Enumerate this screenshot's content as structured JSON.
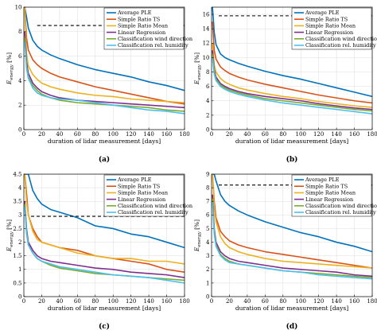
{
  "colors": {
    "average_ple": "#0072BD",
    "simple_ratio_ts": "#D95319",
    "simple_ratio_mean": "#EDB120",
    "linear_regression": "#7E2F8E",
    "classification_wind_direction": "#77AC30",
    "classification_rel_humidity": "#4DBEEE",
    "reference": "#000000"
  },
  "legend_labels": [
    "Average PLE",
    "Simple Ratio TS",
    "Simple Ratio Mean",
    "Linear Regression",
    "Classification wind direction",
    "Classification rel. humidity"
  ],
  "chart_data": [
    {
      "type": "line",
      "panel_label": "(a)",
      "xlabel": "duration of lidar measurement [days]",
      "ylabel": "E_energy [%]",
      "xlim": [
        0,
        180
      ],
      "ylim": [
        0,
        10
      ],
      "xticks": [
        0,
        20,
        40,
        60,
        80,
        100,
        120,
        140,
        160,
        180
      ],
      "yticks": [
        0,
        2,
        4,
        6,
        8,
        10
      ],
      "grid": true,
      "legend_position": "top-right",
      "x": [
        1,
        3,
        5,
        10,
        15,
        20,
        30,
        40,
        60,
        80,
        100,
        120,
        140,
        160,
        180
      ],
      "series": [
        {
          "name": "Average PLE",
          "values": [
            10,
            9.2,
            8.3,
            7.3,
            6.8,
            6.5,
            6.1,
            5.8,
            5.3,
            4.9,
            4.6,
            4.3,
            3.9,
            3.6,
            3.2
          ]
        },
        {
          "name": "Simple Ratio TS",
          "values": [
            10,
            7.5,
            6.5,
            5.7,
            5.3,
            5.0,
            4.6,
            4.3,
            3.9,
            3.5,
            3.2,
            2.9,
            2.6,
            2.3,
            2.1
          ]
        },
        {
          "name": "Simple Ratio Mean",
          "values": [
            10,
            6.2,
            5.2,
            4.5,
            4.1,
            3.8,
            3.5,
            3.3,
            3.0,
            2.8,
            2.7,
            2.5,
            2.4,
            2.3,
            2.2
          ]
        },
        {
          "name": "Linear Regression",
          "values": [
            8.0,
            5.5,
            4.6,
            3.8,
            3.4,
            3.1,
            2.8,
            2.6,
            2.4,
            2.3,
            2.2,
            2.1,
            2.0,
            1.9,
            1.8
          ]
        },
        {
          "name": "Classification wind direction",
          "values": [
            7.5,
            5.2,
            4.3,
            3.6,
            3.2,
            2.9,
            2.6,
            2.4,
            2.2,
            2.1,
            2.0,
            1.9,
            1.8,
            1.6,
            1.5
          ]
        },
        {
          "name": "Classification rel. humidity",
          "values": [
            7.2,
            5.0,
            4.2,
            3.4,
            3.0,
            2.8,
            2.6,
            2.5,
            2.4,
            2.2,
            2.0,
            1.8,
            1.6,
            1.5,
            1.3
          ]
        }
      ],
      "reference_line": {
        "y": 8.5,
        "x_range": [
          15,
          180
        ]
      }
    },
    {
      "type": "line",
      "panel_label": "(b)",
      "xlabel": "duration of lidar measurement [days]",
      "ylabel": "E_energy [%]",
      "xlim": [
        0,
        180
      ],
      "ylim": [
        0,
        17
      ],
      "xticks": [
        0,
        20,
        40,
        60,
        80,
        100,
        120,
        140,
        160,
        180
      ],
      "yticks": [
        0,
        2,
        4,
        6,
        8,
        10,
        12,
        14,
        16
      ],
      "grid": true,
      "legend_position": "top-right",
      "x": [
        1,
        3,
        5,
        10,
        15,
        20,
        30,
        40,
        60,
        80,
        100,
        120,
        140,
        160,
        180
      ],
      "series": [
        {
          "name": "Average PLE",
          "values": [
            17,
            13.5,
            11.8,
            10.5,
            10.0,
            9.7,
            9.2,
            8.8,
            8.1,
            7.5,
            7.0,
            6.4,
            5.8,
            5.2,
            4.6
          ]
        },
        {
          "name": "Simple Ratio TS",
          "values": [
            15,
            11.0,
            9.8,
            8.7,
            8.2,
            7.8,
            7.3,
            6.9,
            6.3,
            5.8,
            5.3,
            4.8,
            4.4,
            4.0,
            3.7
          ]
        },
        {
          "name": "Simple Ratio Mean",
          "values": [
            12,
            9.0,
            8.0,
            7.1,
            6.6,
            6.3,
            5.8,
            5.5,
            5.0,
            4.6,
            4.3,
            3.9,
            3.6,
            3.3,
            3.1
          ]
        },
        {
          "name": "Linear Regression",
          "values": [
            11,
            8.3,
            7.3,
            6.4,
            6.0,
            5.7,
            5.3,
            5.0,
            4.6,
            4.3,
            4.0,
            3.6,
            3.3,
            3.0,
            2.8
          ]
        },
        {
          "name": "Classification wind direction",
          "values": [
            10.5,
            8.0,
            7.0,
            6.2,
            5.8,
            5.5,
            5.1,
            4.8,
            4.3,
            4.0,
            3.7,
            3.4,
            3.1,
            2.8,
            2.6
          ]
        },
        {
          "name": "Classification rel. humidity",
          "values": [
            10,
            7.7,
            6.8,
            6.0,
            5.6,
            5.3,
            4.9,
            4.6,
            4.1,
            3.7,
            3.4,
            3.1,
            2.8,
            2.5,
            2.2
          ]
        }
      ],
      "reference_line": {
        "y": 15.8,
        "x_range": [
          8,
          180
        ]
      }
    },
    {
      "type": "line",
      "panel_label": "(c)",
      "xlabel": "duration of lidar measurement [days]",
      "ylabel": "E_energy [%]",
      "xlim": [
        0,
        180
      ],
      "ylim": [
        0,
        4.5
      ],
      "xticks": [
        0,
        20,
        40,
        60,
        80,
        100,
        120,
        140,
        160,
        180
      ],
      "yticks": [
        0,
        0.5,
        1,
        1.5,
        2,
        2.5,
        3,
        3.5,
        4,
        4.5
      ],
      "grid": true,
      "legend_position": "top-right",
      "x": [
        1,
        3,
        5,
        10,
        15,
        20,
        30,
        40,
        60,
        80,
        100,
        120,
        140,
        160,
        180
      ],
      "series": [
        {
          "name": "Average PLE",
          "values": [
            4.5,
            4.5,
            4.5,
            3.9,
            3.6,
            3.4,
            3.2,
            3.1,
            2.9,
            2.6,
            2.5,
            2.3,
            2.2,
            2.0,
            1.8
          ]
        },
        {
          "name": "Simple Ratio TS",
          "values": [
            4.5,
            3.8,
            3.0,
            2.5,
            2.2,
            2.0,
            1.9,
            1.8,
            1.7,
            1.5,
            1.4,
            1.3,
            1.2,
            1.0,
            0.9
          ]
        },
        {
          "name": "Simple Ratio Mean",
          "values": [
            4.5,
            3.5,
            3.0,
            2.4,
            2.1,
            2.0,
            1.9,
            1.8,
            1.6,
            1.5,
            1.4,
            1.4,
            1.3,
            1.3,
            1.2
          ]
        },
        {
          "name": "Linear Regression",
          "values": [
            3.5,
            2.5,
            2.0,
            1.7,
            1.5,
            1.4,
            1.3,
            1.25,
            1.15,
            1.05,
            1.0,
            0.9,
            0.85,
            0.8,
            0.7
          ]
        },
        {
          "name": "Classification wind direction",
          "values": [
            3.4,
            2.4,
            1.9,
            1.6,
            1.4,
            1.3,
            1.15,
            1.05,
            0.95,
            0.85,
            0.8,
            0.75,
            0.7,
            0.65,
            0.6
          ]
        },
        {
          "name": "Classification rel. humidity",
          "values": [
            3.3,
            2.3,
            1.9,
            1.6,
            1.4,
            1.3,
            1.2,
            1.1,
            1.0,
            0.9,
            0.8,
            0.75,
            0.7,
            0.6,
            0.5
          ]
        }
      ],
      "reference_line": {
        "y": 2.95,
        "x_range": [
          8,
          180
        ]
      }
    },
    {
      "type": "line",
      "panel_label": "(d)",
      "xlabel": "duration of lidar measurement [days]",
      "ylabel": "E_energy [%]",
      "xlim": [
        0,
        180
      ],
      "ylim": [
        0,
        9
      ],
      "xticks": [
        0,
        20,
        40,
        60,
        80,
        100,
        120,
        140,
        160,
        180
      ],
      "yticks": [
        0,
        1,
        2,
        3,
        4,
        5,
        6,
        7,
        8,
        9
      ],
      "grid": true,
      "legend_position": "top-right",
      "x": [
        1,
        3,
        5,
        10,
        15,
        20,
        30,
        40,
        60,
        80,
        100,
        120,
        140,
        160,
        180
      ],
      "series": [
        {
          "name": "Average PLE",
          "values": [
            9,
            9,
            8.5,
            7.5,
            7.0,
            6.7,
            6.3,
            6.0,
            5.5,
            5.1,
            4.7,
            4.4,
            4.0,
            3.7,
            3.3
          ]
        },
        {
          "name": "Simple Ratio TS",
          "values": [
            9,
            7.0,
            5.8,
            4.8,
            4.4,
            4.1,
            3.8,
            3.6,
            3.3,
            3.1,
            2.9,
            2.7,
            2.5,
            2.3,
            2.1
          ]
        },
        {
          "name": "Simple Ratio Mean",
          "values": [
            9,
            6.5,
            5.5,
            4.4,
            3.9,
            3.6,
            3.3,
            3.1,
            2.8,
            2.6,
            2.5,
            2.4,
            2.3,
            2.2,
            2.1
          ]
        },
        {
          "name": "Linear Regression",
          "values": [
            7.5,
            5.0,
            4.0,
            3.3,
            3.0,
            2.8,
            2.6,
            2.5,
            2.3,
            2.1,
            2.0,
            1.9,
            1.8,
            1.6,
            1.5
          ]
        },
        {
          "name": "Classification wind direction",
          "values": [
            7.2,
            4.8,
            3.8,
            3.1,
            2.8,
            2.6,
            2.4,
            2.3,
            2.1,
            1.9,
            1.8,
            1.7,
            1.6,
            1.5,
            1.4
          ]
        },
        {
          "name": "Classification rel. humidity",
          "values": [
            7.0,
            4.6,
            3.7,
            3.0,
            2.7,
            2.5,
            2.4,
            2.3,
            2.1,
            1.9,
            1.8,
            1.6,
            1.5,
            1.4,
            1.3
          ]
        }
      ],
      "reference_line": {
        "y": 8.2,
        "x_range": [
          8,
          180
        ]
      }
    }
  ]
}
